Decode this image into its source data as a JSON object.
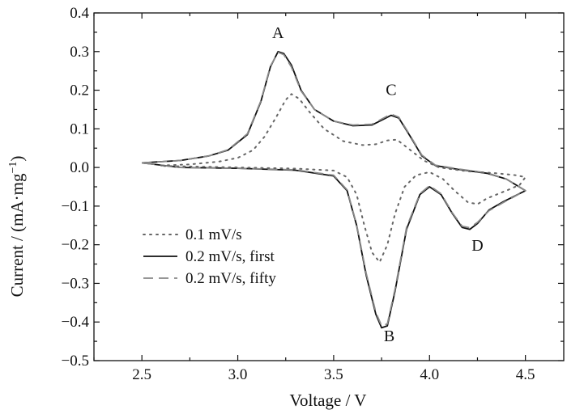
{
  "chart_data": {
    "type": "line",
    "xlabel": "Voltage / V",
    "ylabel_main": "Current / (mA·mg",
    "ylabel_sup": "−1",
    "ylabel_close": ")",
    "xlim": [
      2.25,
      4.7
    ],
    "ylim": [
      -0.5,
      0.4
    ],
    "xticks": [
      {
        "v": 2.5,
        "label": "2.5"
      },
      {
        "v": 3.0,
        "label": "3.0"
      },
      {
        "v": 3.5,
        "label": "3.5"
      },
      {
        "v": 4.0,
        "label": "4.0"
      },
      {
        "v": 4.5,
        "label": "4.5"
      }
    ],
    "yticks": [
      {
        "v": 0.4,
        "label": "0.4"
      },
      {
        "v": 0.3,
        "label": "0.3"
      },
      {
        "v": 0.2,
        "label": "0.2"
      },
      {
        "v": 0.1,
        "label": "0.1"
      },
      {
        "v": 0.0,
        "label": "0.0"
      },
      {
        "v": -0.1,
        "label": "−0.1"
      },
      {
        "v": -0.2,
        "label": "−0.2"
      },
      {
        "v": -0.3,
        "label": "−0.3"
      },
      {
        "v": -0.4,
        "label": "−0.4"
      },
      {
        "v": -0.5,
        "label": "−0.5"
      }
    ],
    "x_minor_step": 0.25,
    "y_minor_step": 0.05,
    "legend_position": "lower-left",
    "series": [
      {
        "name": "0.1 mV/s",
        "style": "dotted",
        "color": "#666666",
        "points": [
          [
            2.6,
            0.005
          ],
          [
            2.75,
            0.008
          ],
          [
            2.9,
            0.015
          ],
          [
            3.0,
            0.025
          ],
          [
            3.08,
            0.045
          ],
          [
            3.14,
            0.08
          ],
          [
            3.2,
            0.13
          ],
          [
            3.25,
            0.175
          ],
          [
            3.28,
            0.19
          ],
          [
            3.32,
            0.178
          ],
          [
            3.38,
            0.14
          ],
          [
            3.45,
            0.1
          ],
          [
            3.55,
            0.068
          ],
          [
            3.65,
            0.058
          ],
          [
            3.72,
            0.06
          ],
          [
            3.78,
            0.07
          ],
          [
            3.83,
            0.072
          ],
          [
            3.9,
            0.045
          ],
          [
            3.97,
            0.018
          ],
          [
            4.05,
            0.0
          ],
          [
            4.2,
            -0.01
          ],
          [
            4.35,
            -0.015
          ],
          [
            4.45,
            -0.02
          ],
          [
            4.5,
            -0.025
          ],
          [
            4.47,
            -0.045
          ],
          [
            4.4,
            -0.06
          ],
          [
            4.3,
            -0.08
          ],
          [
            4.25,
            -0.095
          ],
          [
            4.2,
            -0.09
          ],
          [
            4.13,
            -0.06
          ],
          [
            4.07,
            -0.03
          ],
          [
            4.0,
            -0.012
          ],
          [
            3.93,
            -0.02
          ],
          [
            3.87,
            -0.05
          ],
          [
            3.82,
            -0.12
          ],
          [
            3.78,
            -0.2
          ],
          [
            3.74,
            -0.245
          ],
          [
            3.7,
            -0.22
          ],
          [
            3.66,
            -0.15
          ],
          [
            3.62,
            -0.07
          ],
          [
            3.57,
            -0.025
          ],
          [
            3.5,
            -0.008
          ],
          [
            3.3,
            -0.003
          ],
          [
            3.0,
            0.0
          ],
          [
            2.6,
            0.004
          ]
        ]
      },
      {
        "name": "0.2 mV/s, first",
        "style": "solid",
        "color": "#111111",
        "points": [
          [
            2.5,
            0.012
          ],
          [
            2.7,
            0.018
          ],
          [
            2.85,
            0.03
          ],
          [
            2.95,
            0.045
          ],
          [
            3.05,
            0.085
          ],
          [
            3.12,
            0.17
          ],
          [
            3.17,
            0.26
          ],
          [
            3.21,
            0.3
          ],
          [
            3.24,
            0.295
          ],
          [
            3.28,
            0.265
          ],
          [
            3.33,
            0.2
          ],
          [
            3.4,
            0.15
          ],
          [
            3.5,
            0.12
          ],
          [
            3.6,
            0.108
          ],
          [
            3.7,
            0.11
          ],
          [
            3.76,
            0.125
          ],
          [
            3.8,
            0.135
          ],
          [
            3.84,
            0.128
          ],
          [
            3.9,
            0.08
          ],
          [
            3.96,
            0.03
          ],
          [
            4.03,
            0.005
          ],
          [
            4.15,
            -0.005
          ],
          [
            4.3,
            -0.015
          ],
          [
            4.4,
            -0.03
          ],
          [
            4.5,
            -0.06
          ],
          [
            4.44,
            -0.075
          ],
          [
            4.38,
            -0.09
          ],
          [
            4.31,
            -0.11
          ],
          [
            4.25,
            -0.145
          ],
          [
            4.21,
            -0.16
          ],
          [
            4.17,
            -0.155
          ],
          [
            4.12,
            -0.12
          ],
          [
            4.06,
            -0.07
          ],
          [
            4.0,
            -0.05
          ],
          [
            3.95,
            -0.07
          ],
          [
            3.88,
            -0.16
          ],
          [
            3.82,
            -0.32
          ],
          [
            3.78,
            -0.41
          ],
          [
            3.75,
            -0.415
          ],
          [
            3.72,
            -0.38
          ],
          [
            3.67,
            -0.28
          ],
          [
            3.62,
            -0.15
          ],
          [
            3.57,
            -0.06
          ],
          [
            3.5,
            -0.022
          ],
          [
            3.3,
            -0.007
          ],
          [
            3.0,
            -0.002
          ],
          [
            2.7,
            0.0
          ],
          [
            2.5,
            0.012
          ]
        ]
      },
      {
        "name": "0.2 mV/s, fifty",
        "style": "dashed",
        "color": "#888888",
        "points": [
          [
            2.5,
            0.012
          ],
          [
            2.7,
            0.018
          ],
          [
            2.85,
            0.03
          ],
          [
            2.95,
            0.046
          ],
          [
            3.05,
            0.087
          ],
          [
            3.12,
            0.172
          ],
          [
            3.17,
            0.262
          ],
          [
            3.21,
            0.298
          ],
          [
            3.24,
            0.292
          ],
          [
            3.28,
            0.26
          ],
          [
            3.33,
            0.198
          ],
          [
            3.4,
            0.15
          ],
          [
            3.5,
            0.12
          ],
          [
            3.6,
            0.11
          ],
          [
            3.7,
            0.112
          ],
          [
            3.76,
            0.128
          ],
          [
            3.8,
            0.138
          ],
          [
            3.84,
            0.13
          ],
          [
            3.9,
            0.082
          ],
          [
            3.96,
            0.032
          ],
          [
            4.03,
            0.006
          ],
          [
            4.15,
            -0.004
          ],
          [
            4.3,
            -0.014
          ],
          [
            4.4,
            -0.03
          ],
          [
            4.5,
            -0.06
          ],
          [
            4.44,
            -0.076
          ],
          [
            4.38,
            -0.092
          ],
          [
            4.31,
            -0.112
          ],
          [
            4.25,
            -0.142
          ],
          [
            4.21,
            -0.156
          ],
          [
            4.17,
            -0.152
          ],
          [
            4.12,
            -0.118
          ],
          [
            4.06,
            -0.068
          ],
          [
            4.0,
            -0.047
          ],
          [
            3.95,
            -0.068
          ],
          [
            3.88,
            -0.155
          ],
          [
            3.82,
            -0.315
          ],
          [
            3.78,
            -0.405
          ],
          [
            3.75,
            -0.41
          ],
          [
            3.72,
            -0.375
          ],
          [
            3.67,
            -0.275
          ],
          [
            3.62,
            -0.148
          ],
          [
            3.57,
            -0.058
          ],
          [
            3.5,
            -0.02
          ],
          [
            3.3,
            -0.006
          ],
          [
            3.0,
            -0.002
          ],
          [
            2.7,
            0.0
          ],
          [
            2.5,
            0.012
          ]
        ]
      }
    ],
    "annotations": [
      {
        "text": "A",
        "x": 3.21,
        "y": 0.335
      },
      {
        "text": "C",
        "x": 3.8,
        "y": 0.188
      },
      {
        "text": "D",
        "x": 4.25,
        "y": -0.215
      },
      {
        "text": "B",
        "x": 3.79,
        "y": -0.45
      }
    ]
  }
}
